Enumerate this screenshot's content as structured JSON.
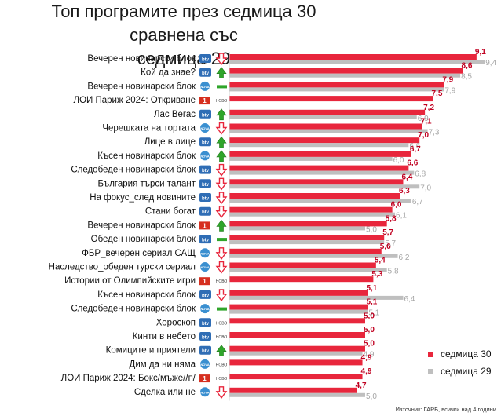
{
  "title_line1": "Топ програмите през седмица 30 сравнена със",
  "title_line2": "седмица 29",
  "source": "Източник: ГАРБ, всички над 4 години",
  "colors": {
    "current": "#e8263c",
    "previous": "#bfbfbf",
    "current_label": "#c00020"
  },
  "chart_data": {
    "type": "bar",
    "orientation": "horizontal",
    "title": "Топ програмите през седмица 30 сравнена със седмица 29",
    "categories": [
      "Вечерен новинарски блок",
      "Кой да знае?",
      "Вечерен новинарски блок",
      "ЛОИ Париж 2024: Откриване",
      "Лас Вегас",
      "Черешката на тортата",
      "Лице в лице",
      "Късен новинарски блок",
      "Следобеден новинарски блок",
      "България търси талант",
      "На фокус_след новините",
      "Стани богат",
      "Вечерен новинарски блок",
      "Обеден новинарски блок",
      "ФБР_вечерен сериал САЩ",
      "Наследство_обеден турски сериал",
      "Истории от Олимпийските игри",
      "Късен новинарски блок",
      "Следобеден новинарски блок",
      "Хороскоп",
      "Кинти в небето",
      "Комиците и приятели",
      "Дим да ни няма",
      "ЛОИ Париж 2024: Бокс/мъже//п/",
      "Сделка или не"
    ],
    "channels": [
      "bTV",
      "bTV",
      "NOVA",
      "BNT1",
      "bTV",
      "NOVA",
      "bTV",
      "NOVA",
      "bTV",
      "bTV",
      "bTV",
      "bTV",
      "BNT1",
      "bTV",
      "NOVA",
      "NOVA",
      "BNT1",
      "bTV",
      "NOVA",
      "bTV",
      "bTV",
      "bTV",
      "NOVA",
      "BNT1",
      "NOVA"
    ],
    "trend": [
      "down",
      "up",
      "flat",
      "new",
      "up",
      "down",
      "up",
      "up",
      "down",
      "down",
      "down",
      "down",
      "up",
      "flat",
      "down",
      "down",
      "new",
      "down",
      "flat",
      "new",
      "new",
      "up",
      "new",
      "new",
      "down"
    ],
    "series": [
      {
        "name": "седмица 30",
        "values": [
          9.1,
          8.6,
          7.9,
          7.5,
          7.2,
          7.1,
          7.0,
          6.7,
          6.6,
          6.4,
          6.3,
          6.0,
          5.8,
          5.7,
          5.6,
          5.4,
          5.3,
          5.1,
          5.1,
          5.0,
          5.0,
          5.0,
          4.9,
          4.9,
          4.7
        ],
        "labels": [
          "9,1",
          "8,6",
          "7,9",
          "7,5",
          "7,2",
          "7,1",
          "7,0",
          "6,7",
          "6,6",
          "6,4",
          "6,3",
          "6,0",
          "5,8",
          "5,7",
          "5,6",
          "5,4",
          "5,3",
          "5,1",
          "5,1",
          "5,0",
          "5,0",
          "5,0",
          "4,9",
          "4,9",
          "4,7"
        ]
      },
      {
        "name": "седмица 29",
        "values": [
          9.4,
          8.5,
          7.9,
          null,
          6.9,
          7.3,
          6.6,
          6.0,
          6.8,
          7.0,
          6.7,
          6.1,
          5.0,
          5.7,
          6.2,
          5.8,
          null,
          6.4,
          5.1,
          null,
          null,
          4.9,
          null,
          null,
          5.0
        ],
        "labels": [
          "9,4",
          "8,5",
          "7,9",
          "",
          "6,9",
          "7,3",
          "6,6",
          "6,0",
          "6,8",
          "7,0",
          "6,7",
          "6,1",
          "5,0",
          "5,7",
          "6,2",
          "5,8",
          "",
          "6,4",
          "5,1",
          "",
          "",
          "4,9",
          "",
          "",
          "5,0"
        ]
      }
    ],
    "channel_logos": {
      "bTV": "btv",
      "NOVA": "NOVA",
      "BNT1": "1",
      "new_label": "НОВО"
    },
    "xlim": [
      0,
      10
    ],
    "legend_position": "bottom-right"
  }
}
